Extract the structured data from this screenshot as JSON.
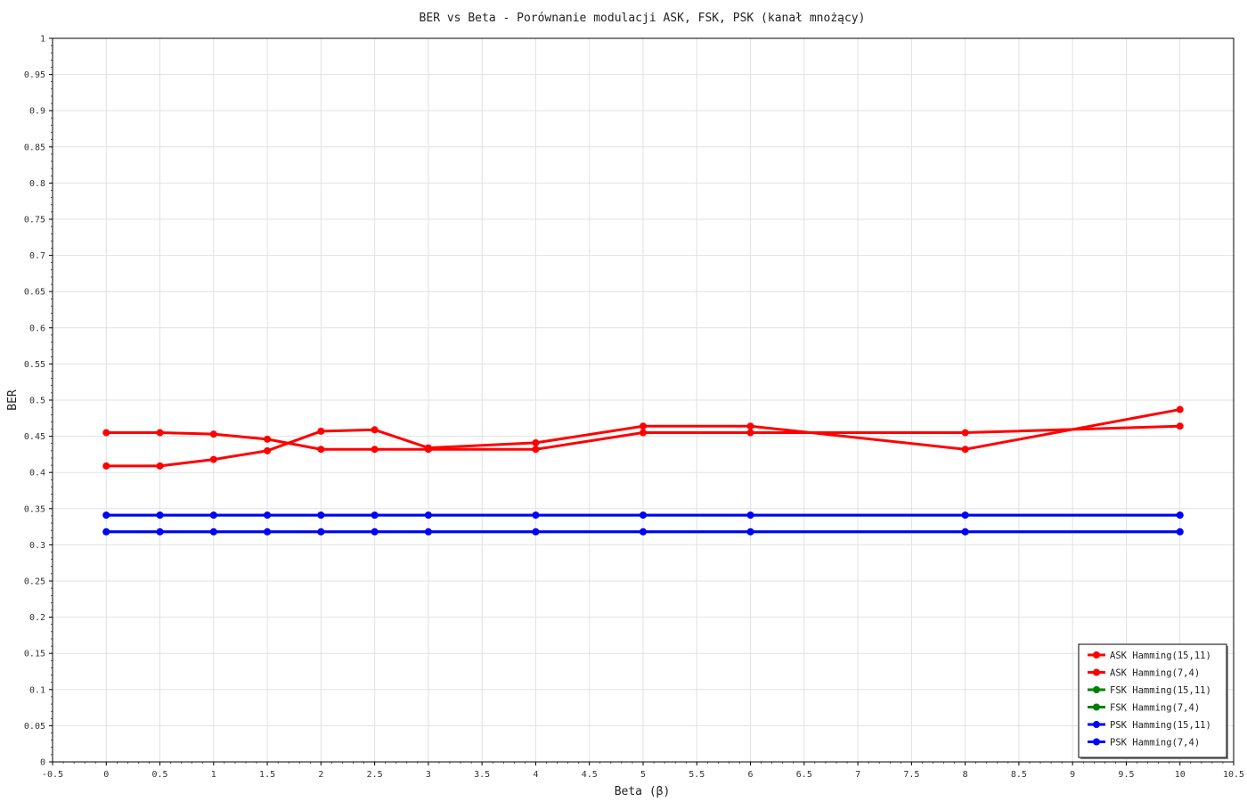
{
  "chart_data": {
    "type": "line",
    "title": "BER vs Beta - Porównanie modulacji ASK, FSK, PSK (kanał mnożący)",
    "xlabel": "Beta (β)",
    "ylabel": "BER",
    "xlim": [
      -0.5,
      10.5
    ],
    "ylim": [
      0,
      1
    ],
    "x_ticks": [
      "-0.5",
      "0",
      "0.5",
      "1",
      "1.5",
      "2",
      "2.5",
      "3",
      "3.5",
      "4",
      "4.5",
      "5",
      "5.5",
      "6",
      "6.5",
      "7",
      "7.5",
      "8",
      "8.5",
      "9",
      "9.5",
      "10",
      "10.5"
    ],
    "y_ticks": [
      "0",
      "0.05",
      "0.1",
      "0.15",
      "0.2",
      "0.25",
      "0.3",
      "0.35",
      "0.4",
      "0.45",
      "0.5",
      "0.55",
      "0.6",
      "0.65",
      "0.7",
      "0.75",
      "0.8",
      "0.85",
      "0.9",
      "0.95",
      "1"
    ],
    "grid": true,
    "legend_position": "bottom-right",
    "x": [
      0,
      0.5,
      1,
      1.5,
      2,
      2.5,
      3,
      4,
      5,
      6,
      8,
      10
    ],
    "series": [
      {
        "name": "ASK Hamming(15,11)",
        "color": "#ff0000",
        "values": [
          0.409,
          0.409,
          0.418,
          0.43,
          0.457,
          0.459,
          0.434,
          0.441,
          0.464,
          0.464,
          0.432,
          0.487
        ]
      },
      {
        "name": "ASK Hamming(7,4)",
        "color": "#ff0000",
        "values": [
          0.455,
          0.455,
          0.453,
          0.446,
          0.432,
          0.432,
          0.432,
          0.432,
          0.455,
          0.455,
          0.455,
          0.464
        ]
      },
      {
        "name": "FSK Hamming(15,11)",
        "color": "#008000",
        "values": [
          0.341,
          0.341,
          0.341,
          0.341,
          0.341,
          0.341,
          0.341,
          0.341,
          0.341,
          0.341,
          0.341,
          0.341
        ]
      },
      {
        "name": "FSK Hamming(7,4)",
        "color": "#008000",
        "values": [
          0.318,
          0.318,
          0.318,
          0.318,
          0.318,
          0.318,
          0.318,
          0.318,
          0.318,
          0.318,
          0.318,
          0.318
        ]
      },
      {
        "name": "PSK Hamming(15,11)",
        "color": "#0000ff",
        "values": [
          0.341,
          0.341,
          0.341,
          0.341,
          0.341,
          0.341,
          0.341,
          0.341,
          0.341,
          0.341,
          0.341,
          0.341
        ]
      },
      {
        "name": "PSK Hamming(7,4)",
        "color": "#0000ff",
        "values": [
          0.318,
          0.318,
          0.318,
          0.318,
          0.318,
          0.318,
          0.318,
          0.318,
          0.318,
          0.318,
          0.318,
          0.318
        ]
      }
    ]
  }
}
